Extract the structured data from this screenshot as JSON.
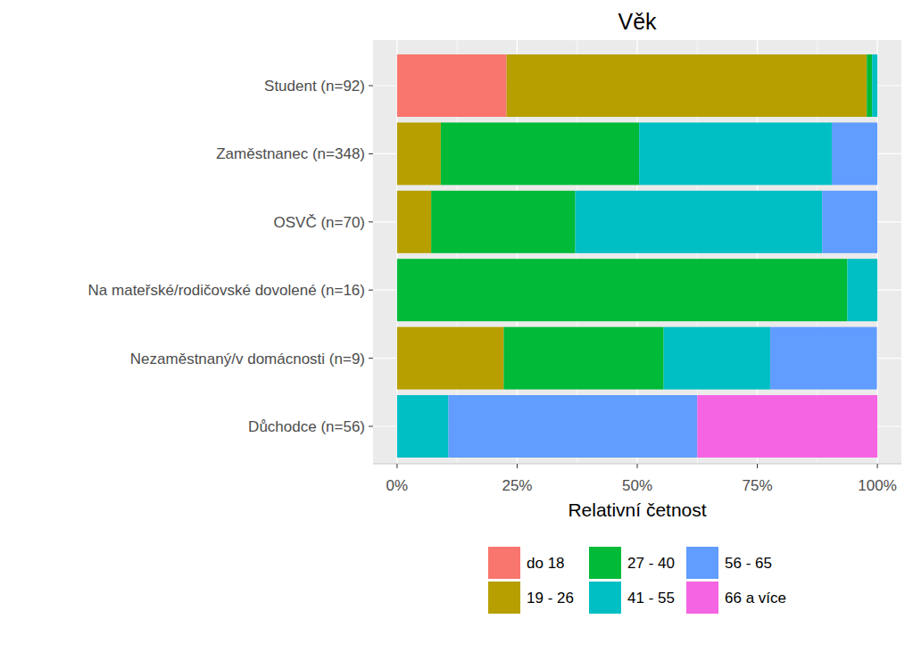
{
  "chart_data": {
    "type": "bar",
    "title": "Věk",
    "orientation": "horizontal",
    "stacked": true,
    "grid": true,
    "legend": "bottom",
    "x_label": "Relativní četnost",
    "categories": [
      "Student (n=92)",
      "Zaměstnanec (n=348)",
      "OSVČ (n=70)",
      "Na mateřské/rodičovské dovolené (n=16)",
      "Nezaměstnaný/v domácnosti (n=9)",
      "Důchodce (n=56)"
    ],
    "series": [
      {
        "name": "do 18",
        "color": "#F8766D",
        "values": [
          22.8,
          0,
          0,
          0,
          0,
          0
        ]
      },
      {
        "name": "19 - 26",
        "color": "#B79F00",
        "values": [
          75.0,
          9.1,
          7.1,
          0,
          22.2,
          0
        ]
      },
      {
        "name": "27 - 40",
        "color": "#00BA38",
        "values": [
          1.1,
          41.3,
          30.0,
          93.75,
          33.3,
          0
        ]
      },
      {
        "name": "41 - 55",
        "color": "#00BFC4",
        "values": [
          1.1,
          40.1,
          51.4,
          6.25,
          22.2,
          10.7
        ]
      },
      {
        "name": "56 - 65",
        "color": "#619CFF",
        "values": [
          0,
          9.5,
          11.5,
          0,
          22.2,
          51.8
        ]
      },
      {
        "name": "66 a více",
        "color": "#F564E3",
        "values": [
          0,
          0,
          0,
          0,
          0,
          37.5
        ]
      }
    ],
    "xlim": [
      -5,
      105
    ],
    "xticks": [
      {
        "value": 0,
        "label": "0%"
      },
      {
        "value": 25,
        "label": "25%"
      },
      {
        "value": 50,
        "label": "50%"
      },
      {
        "value": 75,
        "label": "75%"
      },
      {
        "value": 100,
        "label": "100%"
      }
    ]
  }
}
